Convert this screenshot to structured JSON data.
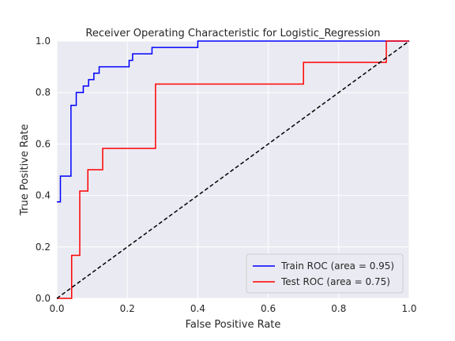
{
  "chart_data": {
    "type": "line",
    "title": "Receiver Operating Characteristic for Logistic_Regression",
    "xlabel": "False Positive Rate",
    "ylabel": "True Positive Rate",
    "xlim": [
      0.0,
      1.0
    ],
    "ylim": [
      0.0,
      1.0
    ],
    "xticks": [
      "0.0",
      "0.2",
      "0.4",
      "0.6",
      "0.8",
      "1.0"
    ],
    "yticks": [
      "0.0",
      "0.2",
      "0.4",
      "0.6",
      "0.8",
      "1.0"
    ],
    "grid": true,
    "background": "#eaeaf2",
    "legend_position": "lower right",
    "series": [
      {
        "name": "Train ROC (area = 0.95)",
        "color": "#0000ff",
        "style": "solid",
        "x": [
          0.0,
          0.0,
          0.01,
          0.01,
          0.04,
          0.04,
          0.055,
          0.055,
          0.075,
          0.075,
          0.09,
          0.09,
          0.105,
          0.105,
          0.12,
          0.12,
          0.205,
          0.205,
          0.215,
          0.215,
          0.27,
          0.27,
          0.4,
          0.4,
          1.0
        ],
        "y": [
          0.375,
          0.375,
          0.375,
          0.475,
          0.475,
          0.75,
          0.75,
          0.8,
          0.8,
          0.825,
          0.825,
          0.85,
          0.85,
          0.875,
          0.875,
          0.9,
          0.9,
          0.925,
          0.925,
          0.95,
          0.95,
          0.975,
          0.975,
          1.0,
          1.0
        ]
      },
      {
        "name": "Test ROC (area = 0.75)",
        "color": "#ff0000",
        "style": "solid",
        "x": [
          0.0,
          0.042,
          0.042,
          0.065,
          0.065,
          0.088,
          0.088,
          0.13,
          0.13,
          0.28,
          0.28,
          0.7,
          0.7,
          0.935,
          0.935,
          1.0
        ],
        "y": [
          0.0,
          0.0,
          0.167,
          0.167,
          0.417,
          0.417,
          0.5,
          0.5,
          0.583,
          0.583,
          0.833,
          0.833,
          0.917,
          0.917,
          1.0,
          1.0
        ]
      },
      {
        "color": "#000000",
        "style": "dashed",
        "x": [
          0.0,
          1.0
        ],
        "y": [
          0.0,
          1.0
        ]
      }
    ]
  }
}
